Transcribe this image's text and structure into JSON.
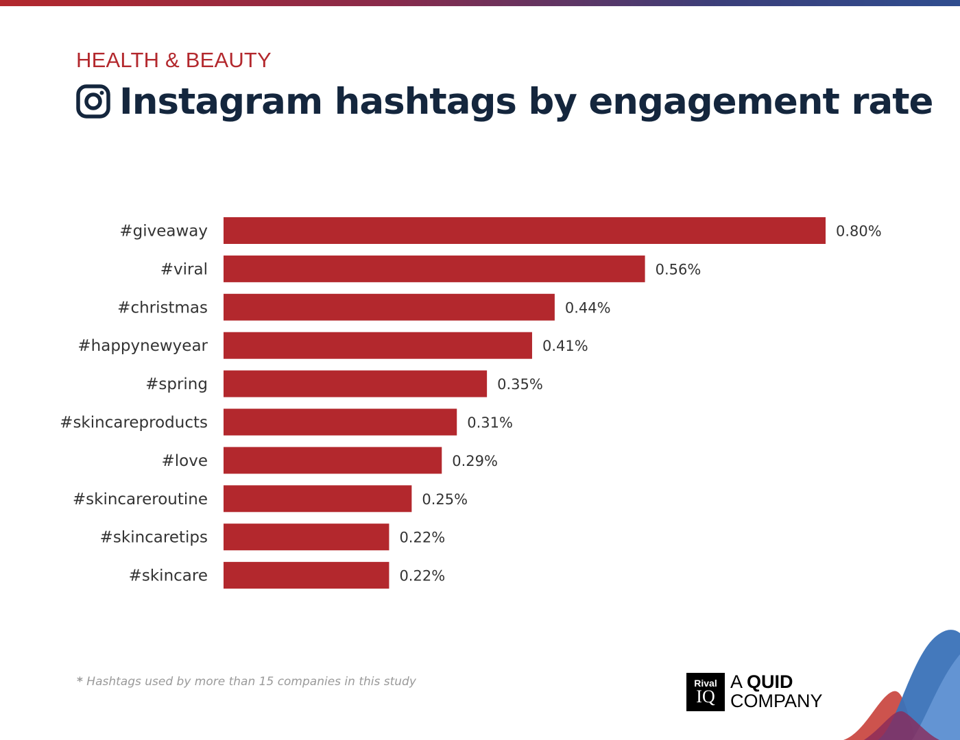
{
  "header": {
    "category": "HEALTH & BEAUTY",
    "title": "Instagram hashtags by engagement rate"
  },
  "chart_data": {
    "type": "bar",
    "orientation": "horizontal",
    "title": "Instagram hashtags by engagement rate",
    "categories": [
      "#giveaway",
      "#viral",
      "#christmas",
      "#happynewyear",
      "#spring",
      "#skincareproducts",
      "#love",
      "#skincareroutine",
      "#skincaretips",
      "#skincare"
    ],
    "values": [
      0.8,
      0.56,
      0.44,
      0.41,
      0.35,
      0.31,
      0.29,
      0.25,
      0.22,
      0.22
    ],
    "value_labels": [
      "0.80%",
      "0.56%",
      "0.44%",
      "0.41%",
      "0.35%",
      "0.31%",
      "0.29%",
      "0.25%",
      "0.22%",
      "0.22%"
    ],
    "unit": "%",
    "xlim": [
      0,
      0.8
    ],
    "bar_color": "#b3282d",
    "grid": false,
    "legend": "none"
  },
  "footer": {
    "footnote_star": "*",
    "footnote": "Hashtags used by more than 15 companies in this study",
    "logo_rival": "Rival",
    "logo_iq": "IQ",
    "logo_a": "A",
    "logo_quid": "QUID",
    "logo_company": "COMPANY"
  },
  "colors": {
    "accent_red": "#b3282d",
    "title_navy": "#14263d"
  },
  "icons": [
    "instagram-icon"
  ]
}
